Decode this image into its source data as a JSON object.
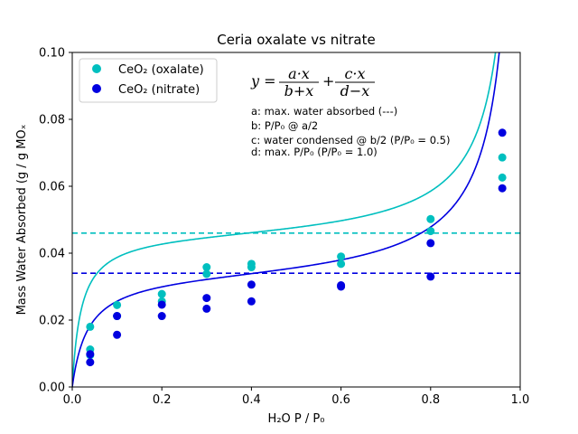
{
  "chart_data": {
    "type": "scatter",
    "title": "Ceria oxalate vs nitrate",
    "xlabel": "H₂O P / P₀",
    "ylabel": "Mass Water Absorbed (g / g MOₓ",
    "xlim": [
      0.0,
      1.0
    ],
    "ylim": [
      0.0,
      0.1
    ],
    "x_ticks": [
      "0.0",
      "0.2",
      "0.4",
      "0.6",
      "0.8",
      "1.0"
    ],
    "y_ticks": [
      "0.00",
      "0.02",
      "0.04",
      "0.06",
      "0.08",
      "0.10"
    ],
    "legend_position": "top-left",
    "series": [
      {
        "name": "CeO₂ (oxalate)",
        "color": "#00bfbf",
        "points": [
          [
            0.04,
            0.018
          ],
          [
            0.04,
            0.0112
          ],
          [
            0.04,
            0.0095
          ],
          [
            0.1,
            0.0245
          ],
          [
            0.1,
            0.0212
          ],
          [
            0.2,
            0.0278
          ],
          [
            0.2,
            0.0256
          ],
          [
            0.3,
            0.0358
          ],
          [
            0.3,
            0.0338
          ],
          [
            0.4,
            0.0368
          ],
          [
            0.4,
            0.0358
          ],
          [
            0.6,
            0.039
          ],
          [
            0.6,
            0.0368
          ],
          [
            0.8,
            0.0502
          ],
          [
            0.8,
            0.0466
          ],
          [
            0.96,
            0.0686
          ],
          [
            0.96,
            0.0626
          ]
        ],
        "fit": {
          "a": 0.046,
          "b": 0.02,
          "c": 0.0035,
          "d": 1.005
        }
      },
      {
        "name": "CeO₂ (nitrate)",
        "color": "#0000e0",
        "points": [
          [
            0.04,
            0.0098
          ],
          [
            0.04,
            0.0074
          ],
          [
            0.1,
            0.0212
          ],
          [
            0.1,
            0.0156
          ],
          [
            0.2,
            0.0246
          ],
          [
            0.2,
            0.0212
          ],
          [
            0.3,
            0.0266
          ],
          [
            0.3,
            0.0234
          ],
          [
            0.4,
            0.0306
          ],
          [
            0.4,
            0.0256
          ],
          [
            0.6,
            0.0304
          ],
          [
            0.6,
            0.03
          ],
          [
            0.8,
            0.043
          ],
          [
            0.8,
            0.033
          ],
          [
            0.96,
            0.076
          ],
          [
            0.96,
            0.0594
          ]
        ],
        "fit": {
          "a": 0.034,
          "b": 0.035,
          "c": 0.004,
          "d": 1.01
        }
      }
    ],
    "hlines": [
      {
        "y": 0.046,
        "color": "#00bfbf",
        "style": "dashed"
      },
      {
        "y": 0.034,
        "color": "#0000e0",
        "style": "dashed"
      }
    ],
    "annotations": {
      "equation": {
        "lhs": "y =",
        "t1_num": "a·x",
        "t1_den": "b+x",
        "plus": "+",
        "t2_num": "c·x",
        "t2_den": "d−x"
      },
      "notes": [
        "a: max. water absorbed (---)",
        "b: P/P₀ @ a/2",
        "c: water condensed @ b/2 (P/P₀ = 0.5)",
        "d: max. P/P₀ (P/P₀ = 1.0)"
      ]
    }
  }
}
